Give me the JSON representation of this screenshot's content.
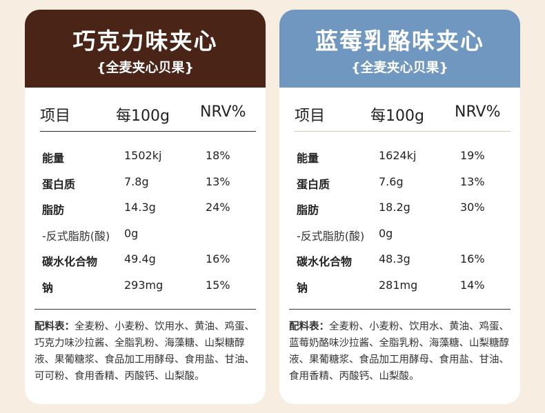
{
  "cards": [
    {
      "title": "巧克力味夹心",
      "subtitle": "{全麦夹心贝果}",
      "header_color": "#4a2417",
      "columns": [
        "项目",
        "每100g",
        "NRV%"
      ],
      "rows": [
        {
          "name": "能量",
          "value": "1502kj",
          "nrv": "18%"
        },
        {
          "name": "蛋白质",
          "value": "7.8g",
          "nrv": "13%"
        },
        {
          "name": "脂肪",
          "value": "14.3g",
          "nrv": "24%"
        },
        {
          "name": "-反式脂肪(酸)",
          "value": "0g",
          "nrv": ""
        },
        {
          "name": "碳水化合物",
          "value": "49.4g",
          "nrv": "16%"
        },
        {
          "name": "钠",
          "value": "293mg",
          "nrv": "15%"
        }
      ],
      "ingredients_label": "配料表：",
      "ingredients_text": "全麦粉、小麦粉、饮用水、黄油、鸡蛋、巧克力味沙拉酱、全脂乳粉、海藻糖、山梨糖醇液、果葡糖浆、食品加工用酵母、食用盐、甘油、可可粉、食用香精、丙酸钙、山梨酸。"
    },
    {
      "title": "蓝莓乳酪味夹心",
      "subtitle": "{全麦夹心贝果}",
      "header_color": "#6f97bf",
      "columns": [
        "项目",
        "每100g",
        "NRV%"
      ],
      "rows": [
        {
          "name": "能量",
          "value": "1624kj",
          "nrv": "19%"
        },
        {
          "name": "蛋白质",
          "value": "7.6g",
          "nrv": "13%"
        },
        {
          "name": "脂肪",
          "value": "18.2g",
          "nrv": "30%"
        },
        {
          "name": "-反式脂肪(酸)",
          "value": "0g",
          "nrv": ""
        },
        {
          "name": "碳水化合物",
          "value": "48.3g",
          "nrv": "16%"
        },
        {
          "name": "钠",
          "value": "281mg",
          "nrv": "14%"
        }
      ],
      "ingredients_label": "配料表：",
      "ingredients_text": "全麦粉、小麦粉、饮用水、黄油、鸡蛋、蓝莓奶酪味沙拉酱、全脂乳粉、海藻糖、山梨糖醇液、果葡糖浆、食品加工用酵母、食用盐、甘油、食用香精、丙酸钙、山梨酸。"
    }
  ]
}
